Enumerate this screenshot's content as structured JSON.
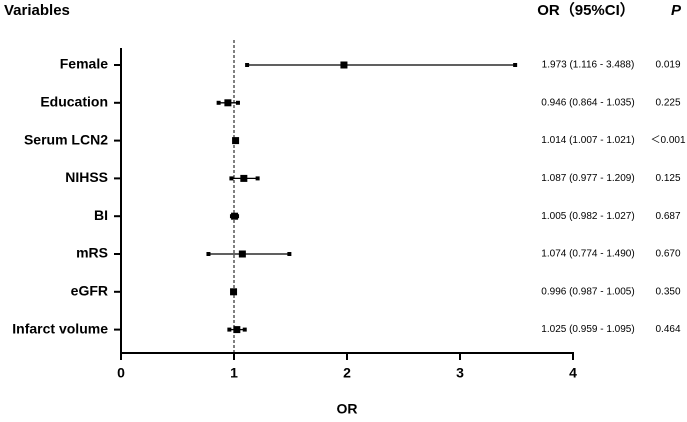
{
  "chart_data": {
    "type": "forest",
    "header": {
      "variables": "Variables",
      "or": "OR（95%CI）",
      "p": "P"
    },
    "xlabel": "OR",
    "categories": [
      "Female",
      "Education",
      "Serum LCN2",
      "NIHSS",
      "BI",
      "mRS",
      "eGFR",
      "Infarct volume"
    ],
    "values": [
      1.973,
      0.946,
      1.014,
      1.087,
      1.005,
      1.074,
      0.996,
      1.025
    ],
    "lower": [
      1.116,
      0.864,
      1.007,
      0.977,
      0.982,
      0.774,
      0.987,
      0.959
    ],
    "upper": [
      3.488,
      1.035,
      1.021,
      1.209,
      1.027,
      1.49,
      1.005,
      1.095
    ],
    "value_labels": [
      "1.973 (1.116 - 3.488)",
      "0.946 (0.864 - 1.035)",
      "1.014 (1.007 - 1.021)",
      "1.087 (0.977 - 1.209)",
      "1.005 (0.982 - 1.027)",
      "1.074 (0.774 - 1.490)",
      "0.996 (0.987 - 1.005)",
      "1.025 (0.959 - 1.095)"
    ],
    "p_values": [
      "0.019",
      "0.225",
      "＜0.001",
      "0.125",
      "0.687",
      "0.670",
      "0.350",
      "0.464"
    ],
    "ref_line": 1,
    "xlim": [
      0,
      4
    ],
    "xticks": [
      0,
      1,
      2,
      3,
      4
    ],
    "color": "#000000"
  }
}
